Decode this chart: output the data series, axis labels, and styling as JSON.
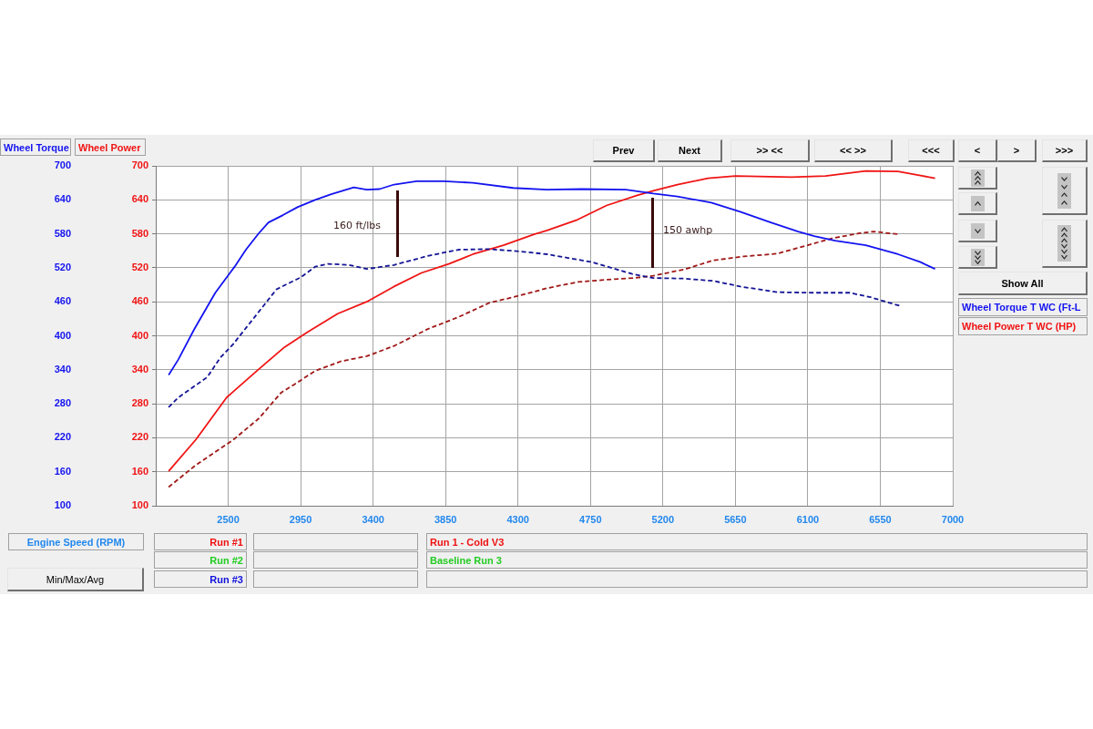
{
  "chart_data": {
    "type": "line",
    "xlabel": "Engine Speed (RPM)",
    "ylabel": "Wheel Torque",
    "y2label": "Wheel Power",
    "xlim": [
      2050,
      7000
    ],
    "xticks": [
      2500,
      2950,
      3400,
      3850,
      4300,
      4750,
      5200,
      5650,
      6100,
      6550,
      7000
    ],
    "ylim": [
      100,
      700
    ],
    "yticks": [
      100,
      160,
      220,
      280,
      340,
      400,
      460,
      520,
      580,
      640,
      700
    ],
    "y2lim": [
      100,
      700
    ],
    "y2ticks": [
      100,
      160,
      220,
      280,
      340,
      400,
      460,
      520,
      580,
      640,
      700
    ],
    "grid": true,
    "legend": "right",
    "marker": "none",
    "series": [
      {
        "name": "Wheel Torque T WC (Ft-L",
        "color": "#1414f0",
        "line_style": "solid",
        "x": [
          2130,
          2190,
          2290,
          2420,
          2540,
          2610,
          2690,
          2750,
          2840,
          2930,
          3040,
          3140,
          3280,
          3360,
          3440,
          3530,
          3670,
          3840,
          4020,
          4270,
          4480,
          4700,
          4970,
          5140,
          5290,
          5500,
          5680,
          5870,
          6040,
          6140,
          6270,
          6460,
          6660,
          6800,
          6890
        ],
        "values": [
          331,
          358,
          412,
          476,
          522,
          552,
          581,
          600,
          613,
          627,
          640,
          650,
          662,
          658,
          659,
          667,
          673,
          673,
          670,
          661,
          658,
          659,
          658,
          651,
          646,
          635,
          619,
          600,
          584,
          576,
          568,
          560,
          544,
          530,
          518
        ]
      },
      {
        "color": "#141496",
        "line_style": "dashed",
        "x": [
          2130,
          2190,
          2370,
          2450,
          2530,
          2650,
          2800,
          2870,
          2950,
          3040,
          3120,
          3250,
          3360,
          3530,
          3740,
          3930,
          4120,
          4310,
          4480,
          4760,
          5010,
          5140,
          5330,
          5510,
          5680,
          5910,
          6140,
          6360,
          6490,
          6670
        ],
        "values": [
          274,
          291,
          327,
          361,
          385,
          428,
          482,
          492,
          503,
          522,
          527,
          525,
          518,
          525,
          541,
          552,
          553,
          549,
          544,
          530,
          509,
          502,
          501,
          497,
          487,
          477,
          476,
          476,
          468,
          453
        ]
      },
      {
        "name": "Wheel Power T WC (HP)",
        "color": "#f01414",
        "axis": "y2",
        "line_style": "solid",
        "x": [
          2130,
          2300,
          2490,
          2690,
          2850,
          2990,
          3180,
          3360,
          3530,
          3700,
          3870,
          4020,
          4210,
          4400,
          4480,
          4670,
          4850,
          5040,
          5140,
          5290,
          5480,
          5650,
          6000,
          6210,
          6460,
          6660,
          6800,
          6890
        ],
        "values": [
          161,
          217,
          291,
          341,
          380,
          406,
          439,
          460,
          487,
          511,
          527,
          544,
          560,
          579,
          586,
          605,
          630,
          648,
          656,
          667,
          678,
          682,
          680,
          682,
          691,
          690,
          683,
          678
        ]
      },
      {
        "color": "#a01818",
        "axis": "y2",
        "line_style": "dashed",
        "x": [
          2130,
          2300,
          2530,
          2690,
          2830,
          2910,
          3040,
          3200,
          3360,
          3530,
          3740,
          3930,
          4120,
          4310,
          4480,
          4670,
          4850,
          5020,
          5140,
          5330,
          5510,
          5700,
          5910,
          6100,
          6250,
          6420,
          6510,
          6670
        ],
        "values": [
          133,
          172,
          216,
          254,
          300,
          314,
          338,
          355,
          364,
          382,
          412,
          433,
          458,
          471,
          484,
          495,
          499,
          502,
          506,
          517,
          533,
          540,
          545,
          560,
          572,
          581,
          584,
          579
        ]
      }
    ],
    "annotations": [
      "160 ft/lbs",
      "150 awhp",
      "Prev",
      "Next",
      ">> <<",
      "<< >>",
      "<<<",
      "<",
      ">",
      ">>>",
      "Show All",
      "Min/Max/Avg",
      "Run #1",
      "Run #2",
      "Run #3",
      "Run 1 - Cold V3",
      "Baseline Run 3"
    ]
  }
}
